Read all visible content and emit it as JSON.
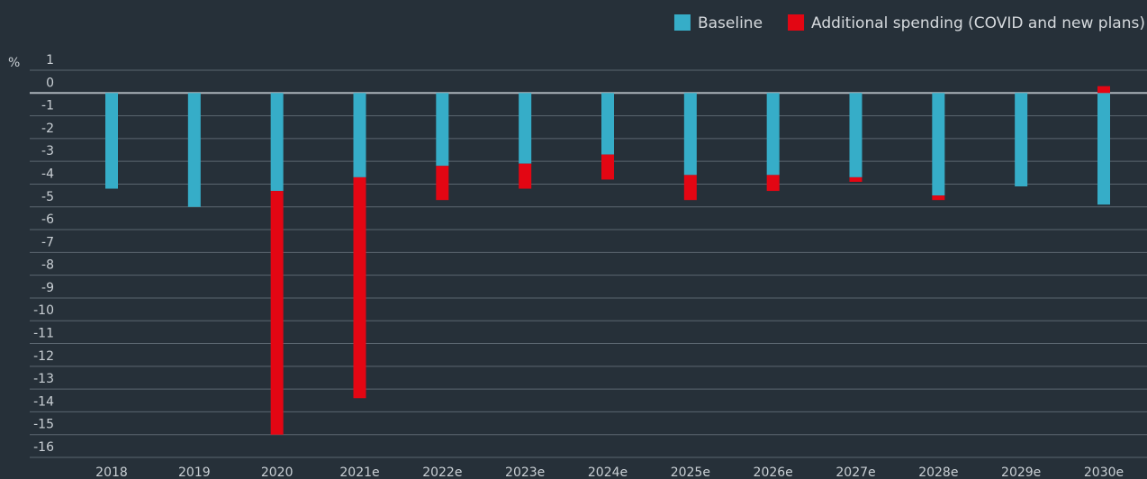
{
  "chart_data": {
    "type": "bar",
    "stacked": true,
    "y_label": "%",
    "categories": [
      "2018",
      "2019",
      "2020",
      "2021e",
      "2022e",
      "2023e",
      "2024e",
      "2025e",
      "2026e",
      "2027e",
      "2028e",
      "2029e",
      "2030e"
    ],
    "series": [
      {
        "name": "Baseline",
        "color": "#36adc8",
        "values": [
          -4.2,
          -5.0,
          -4.3,
          -3.7,
          -3.2,
          -3.1,
          -2.7,
          -3.6,
          -3.6,
          -3.7,
          -4.5,
          -4.1,
          -4.9
        ]
      },
      {
        "name": "Additional spending (COVID and new plans)",
        "color": "#e30613",
        "values": [
          0,
          0,
          -10.7,
          -9.7,
          -1.5,
          -1.1,
          -1.1,
          -1.1,
          -0.7,
          -0.2,
          -0.2,
          0,
          0.3
        ]
      }
    ],
    "ylim": [
      -16,
      1
    ],
    "yticks": [
      1,
      0,
      -1,
      -2,
      -3,
      -4,
      -5,
      -6,
      -7,
      -8,
      -9,
      -10,
      -11,
      -12,
      -13,
      -14,
      -15,
      -16
    ],
    "grid": true,
    "legend": "top-right"
  }
}
